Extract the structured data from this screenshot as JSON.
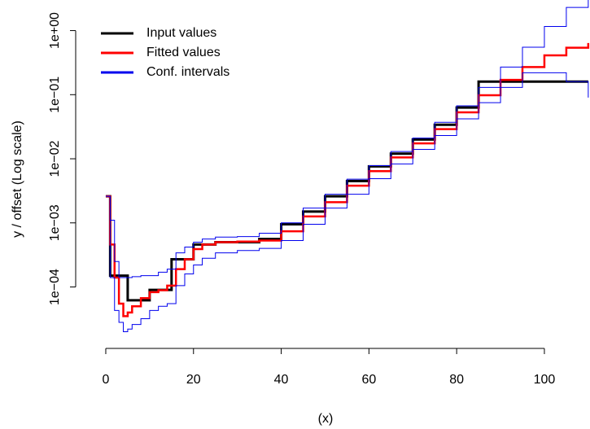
{
  "chart_data": {
    "type": "step",
    "xlabel": "(x)",
    "ylabel": "y / offset   (Log scale)",
    "log_y": true,
    "legend": "top-left",
    "xlim": [
      -6.86,
      110.4
    ],
    "ylim": [
      1.1e-05,
      3
    ],
    "xticks": [
      0,
      20,
      40,
      60,
      80,
      100
    ],
    "yticks": [
      {
        "value": 0.0001,
        "label": "1e−04"
      },
      {
        "value": 0.001,
        "label": "1e−03"
      },
      {
        "value": 0.01,
        "label": "1e−02"
      },
      {
        "value": 0.1,
        "label": "1e−01"
      },
      {
        "value": 1,
        "label": "1e+00"
      }
    ],
    "series": [
      {
        "name": "Input values",
        "color": "#000000",
        "width": 3,
        "x": [
          0,
          1,
          5,
          10,
          15,
          20,
          25,
          35,
          40,
          45,
          50,
          55,
          60,
          65,
          70,
          75,
          80,
          85,
          110
        ],
        "values": [
          0.0026,
          0.00015,
          6.2e-05,
          9e-05,
          0.00027,
          0.00046,
          0.0005,
          0.00056,
          0.00095,
          0.0015,
          0.0026,
          0.0045,
          0.0076,
          0.012,
          0.02,
          0.034,
          0.063,
          0.16,
          0.16
        ]
      },
      {
        "name": "Fitted values",
        "color": "#ff0000",
        "width": 2.5,
        "x": [
          0,
          1,
          2,
          3,
          4,
          5,
          6,
          8,
          10,
          12,
          14,
          16,
          18,
          20,
          22,
          25,
          30,
          35,
          40,
          45,
          50,
          55,
          60,
          65,
          70,
          75,
          80,
          85,
          90,
          95,
          100,
          105,
          110
        ],
        "values": [
          0.0026,
          0.00046,
          0.00014,
          5.5e-05,
          3.5e-05,
          4e-05,
          5e-05,
          6.7e-05,
          8.3e-05,
          8.9e-05,
          0.000105,
          0.00019,
          0.00027,
          0.00039,
          0.00046,
          0.0005,
          0.00051,
          0.00053,
          0.00074,
          0.00126,
          0.0021,
          0.0038,
          0.0064,
          0.0105,
          0.0174,
          0.029,
          0.053,
          0.098,
          0.17,
          0.27,
          0.41,
          0.54,
          0.64
        ]
      },
      {
        "name": "Conf. intervals",
        "color": "#0000ee",
        "width": 1,
        "x": [
          0,
          1,
          2,
          3,
          4,
          5,
          6,
          8,
          10,
          12,
          14,
          16,
          18,
          20,
          22,
          25,
          30,
          35,
          40,
          45,
          50,
          55,
          60,
          65,
          70,
          75,
          80,
          85,
          90,
          95,
          100,
          105,
          110
        ],
        "values": [
          0.0026,
          0.0011,
          0.00025,
          0.00014,
          0.00014,
          0.00014,
          0.000145,
          0.00015,
          0.00015,
          0.00017,
          0.00019,
          0.00034,
          0.00042,
          0.0005,
          0.00056,
          0.0006,
          0.00061,
          0.00069,
          0.001,
          0.0017,
          0.0028,
          0.0048,
          0.0078,
          0.013,
          0.021,
          0.037,
          0.067,
          0.13,
          0.27,
          0.55,
          1.16,
          2.3,
          4
        ]
      },
      {
        "color": "#0000ee",
        "width": 1,
        "x": [
          0,
          1,
          2,
          3,
          4,
          5,
          6,
          8,
          10,
          12,
          14,
          16,
          18,
          20,
          22,
          25,
          30,
          35,
          40,
          45,
          50,
          55,
          60,
          65,
          70,
          75,
          80,
          85,
          90,
          95,
          100,
          105,
          110
        ],
        "values": [
          0.0026,
          0.00014,
          4.3e-05,
          2.8e-05,
          2e-05,
          2.2e-05,
          2.6e-05,
          3.2e-05,
          4.3e-05,
          5e-05,
          5.5e-05,
          0.000105,
          0.00016,
          0.00022,
          0.00028,
          0.00034,
          0.00037,
          0.0004,
          0.00053,
          0.00095,
          0.0017,
          0.0028,
          0.0049,
          0.0083,
          0.014,
          0.023,
          0.042,
          0.075,
          0.13,
          0.22,
          0.22,
          0.16,
          0.09
        ]
      }
    ]
  }
}
